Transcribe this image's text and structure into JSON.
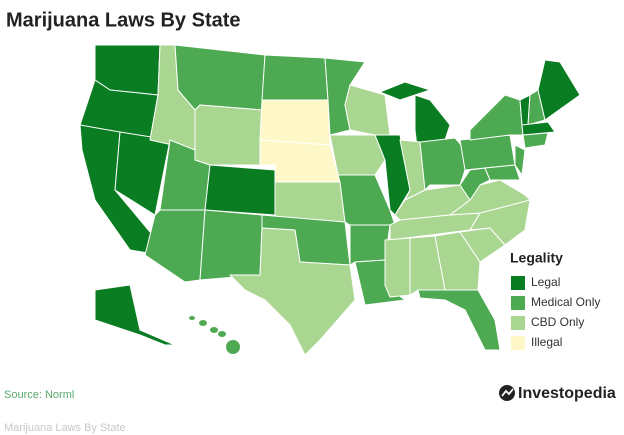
{
  "header": {
    "title": "Marijuana Laws By State"
  },
  "legend": {
    "title": "Legality",
    "items": [
      {
        "label": "Legal",
        "color": "#0a7c22"
      },
      {
        "label": "Medical Only",
        "color": "#4eaa52"
      },
      {
        "label": "CBD Only",
        "color": "#a9d690"
      },
      {
        "label": "Illegal",
        "color": "#fef8c8"
      }
    ]
  },
  "footer": {
    "source": "Source: Norml",
    "brand": "Investopedia",
    "caption": "Marijuana Laws By State"
  }
}
